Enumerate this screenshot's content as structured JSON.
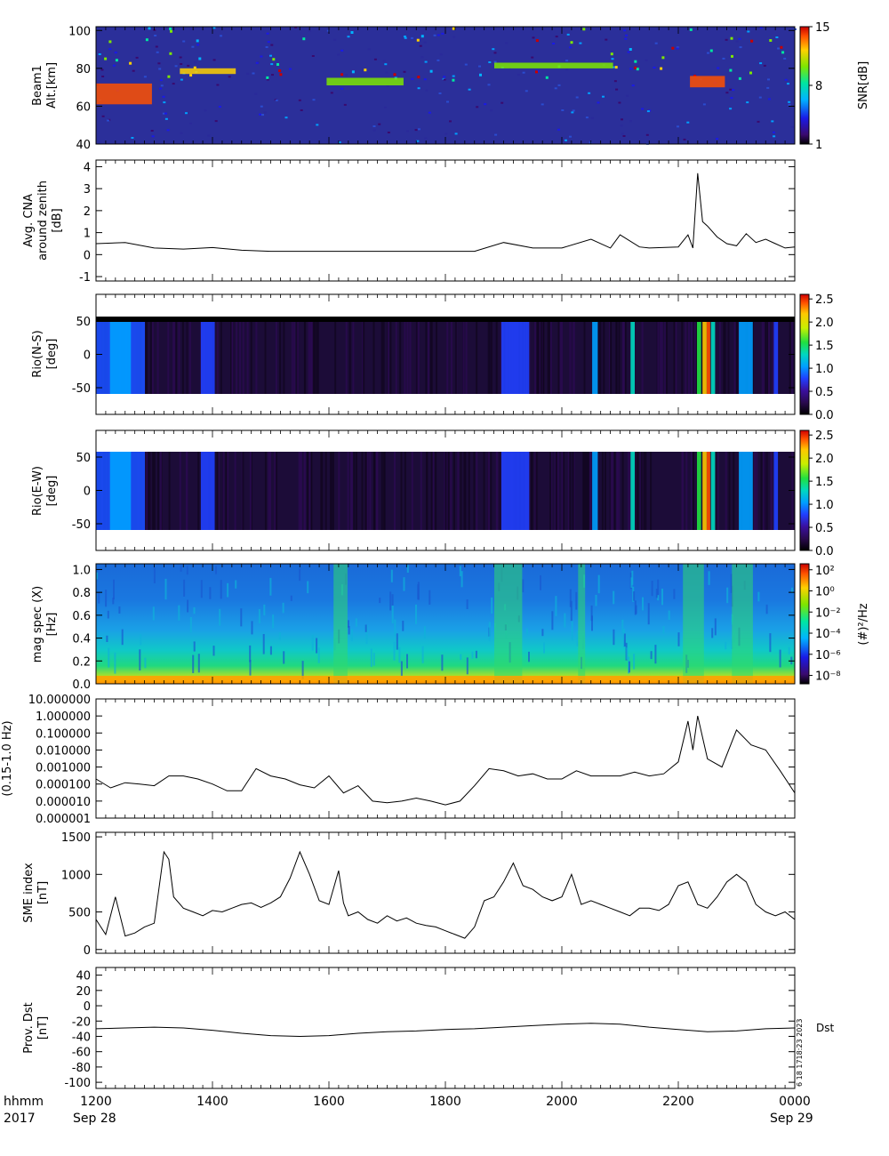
{
  "chart_data": [
    {
      "type": "heatmap",
      "ylabel": [
        "Beam1",
        "Alt.[km]"
      ],
      "ylim": [
        40,
        102
      ],
      "yticks": [
        "40",
        "60",
        "80",
        "100"
      ],
      "colorbar": {
        "label": "SNR[dB]",
        "range": [
          1,
          15
        ],
        "ticks": [
          "1",
          "8",
          "15"
        ],
        "colormap": "rainbow"
      },
      "features": [
        {
          "t0": 0.0,
          "t1": 0.08,
          "alt0": 61,
          "alt1": 72,
          "value": 12
        },
        {
          "t0": 0.12,
          "t1": 0.2,
          "alt0": 77,
          "alt1": 80,
          "value": 11
        },
        {
          "t0": 0.33,
          "t1": 0.44,
          "alt0": 71,
          "alt1": 75,
          "value": 9
        },
        {
          "t0": 0.57,
          "t1": 0.74,
          "alt0": 80,
          "alt1": 83,
          "value": 8
        },
        {
          "t0": 0.85,
          "t1": 0.9,
          "alt0": 70,
          "alt1": 76,
          "value": 13
        }
      ]
    },
    {
      "type": "line",
      "ylabel": [
        "Avg. CNA",
        "around zenith",
        "[dB]"
      ],
      "ylim": [
        -1.2,
        4.3
      ],
      "yticks": [
        "-1",
        "0",
        "1",
        "2",
        "3",
        "4"
      ],
      "x": [
        1200,
        1230,
        1300,
        1330,
        1400,
        1430,
        1500,
        1530,
        1600,
        1630,
        1700,
        1730,
        1800,
        1830,
        1900,
        1930,
        2000,
        2030,
        2050,
        2100,
        2120,
        2130,
        2200,
        2210,
        2215,
        2220,
        2225,
        2230,
        2240,
        2250,
        2300,
        2310,
        2320,
        2330,
        2340,
        2350,
        2400
      ],
      "values": [
        0.5,
        0.55,
        0.3,
        0.25,
        0.32,
        0.2,
        0.15,
        0.15,
        0.15,
        0.15,
        0.15,
        0.15,
        0.15,
        0.15,
        0.55,
        0.3,
        0.3,
        0.7,
        0.3,
        0.9,
        0.35,
        0.3,
        0.35,
        0.9,
        0.3,
        3.7,
        1.5,
        1.3,
        0.8,
        0.5,
        0.4,
        0.95,
        0.55,
        0.7,
        0.5,
        0.3,
        0.35
      ]
    },
    {
      "type": "heatmap",
      "ylabel": [
        "Rio(N-S)",
        "[deg]"
      ],
      "ylim": [
        -90,
        90
      ],
      "yticks": [
        "-50",
        "0",
        "50"
      ],
      "colorbar": {
        "range": [
          0,
          2.6
        ],
        "ticks": [
          "0.0",
          "0.5",
          "1.0",
          "1.5",
          "2.0",
          "2.5"
        ],
        "colormap": "absorption"
      }
    },
    {
      "type": "heatmap",
      "ylabel": [
        "Rio(E-W)",
        "[deg]"
      ],
      "ylim": [
        -90,
        90
      ],
      "yticks": [
        "-50",
        "0",
        "50"
      ],
      "colorbar": {
        "range": [
          0,
          2.6
        ],
        "ticks": [
          "0.0",
          "0.5",
          "1.0",
          "1.5",
          "2.0",
          "2.5"
        ],
        "colormap": "absorption"
      }
    },
    {
      "type": "heatmap",
      "ylabel": [
        "mag spec (X)",
        "[Hz]"
      ],
      "ylim": [
        0,
        1.05
      ],
      "yticks": [
        "0.0",
        "0.2",
        "0.4",
        "0.6",
        "0.8",
        "1.0"
      ],
      "colorbar": {
        "label": "(#)²/Hz",
        "ticks": [
          "10⁻⁸",
          "10⁻⁶",
          "10⁻⁴",
          "10⁻²",
          "10⁰",
          "10²"
        ],
        "colormap": "rainbow",
        "scale": "log"
      }
    },
    {
      "type": "line",
      "ylabel": [
        "(0.15-1.0 Hz)"
      ],
      "yscale": "log",
      "ylim": [
        1e-06,
        10
      ],
      "yticks": [
        "0.000001",
        "0.000010",
        "0.000100",
        "0.001000",
        "0.010000",
        "0.100000",
        "1.000000",
        "10.000000"
      ],
      "x": [
        1200,
        1215,
        1230,
        1245,
        1300,
        1315,
        1330,
        1345,
        1400,
        1415,
        1430,
        1445,
        1500,
        1515,
        1530,
        1545,
        1600,
        1615,
        1630,
        1645,
        1700,
        1715,
        1730,
        1745,
        1800,
        1815,
        1830,
        1845,
        1900,
        1915,
        1930,
        1945,
        2000,
        2015,
        2030,
        2045,
        2100,
        2115,
        2130,
        2145,
        2200,
        2210,
        2215,
        2220,
        2230,
        2245,
        2300,
        2315,
        2330,
        2345,
        2400
      ],
      "values": [
        0.0002,
        6e-05,
        0.00012,
        0.0001,
        8e-05,
        0.0003,
        0.0003,
        0.0002,
        0.0001,
        4e-05,
        4e-05,
        0.0008,
        0.0003,
        0.0002,
        9e-05,
        6e-05,
        0.0003,
        3e-05,
        8e-05,
        1e-05,
        8e-06,
        1e-05,
        1.5e-05,
        1e-05,
        6e-06,
        1e-05,
        8e-05,
        0.0008,
        0.0006,
        0.0003,
        0.0004,
        0.0002,
        0.0002,
        0.0006,
        0.0003,
        0.0003,
        0.0003,
        0.0005,
        0.0003,
        0.0004,
        0.002,
        0.5,
        0.01,
        1.0,
        0.003,
        0.001,
        0.15,
        0.02,
        0.01,
        0.0006,
        3e-05
      ]
    },
    {
      "type": "line",
      "ylabel": [
        "SME index",
        "[nT]"
      ],
      "ylim": [
        -50,
        1560
      ],
      "yticks": [
        "0",
        "500",
        "1000",
        "1500"
      ],
      "x": [
        1200,
        1210,
        1220,
        1230,
        1240,
        1250,
        1300,
        1310,
        1315,
        1320,
        1330,
        1340,
        1350,
        1400,
        1410,
        1420,
        1430,
        1440,
        1450,
        1500,
        1510,
        1520,
        1530,
        1540,
        1550,
        1600,
        1610,
        1615,
        1620,
        1630,
        1640,
        1650,
        1700,
        1710,
        1720,
        1730,
        1740,
        1750,
        1800,
        1810,
        1820,
        1830,
        1840,
        1850,
        1900,
        1910,
        1920,
        1930,
        1940,
        1950,
        2000,
        2010,
        2020,
        2030,
        2040,
        2050,
        2100,
        2110,
        2120,
        2130,
        2140,
        2150,
        2200,
        2210,
        2220,
        2230,
        2240,
        2250,
        2300,
        2310,
        2320,
        2330,
        2340,
        2350,
        2400
      ],
      "values": [
        400,
        200,
        700,
        180,
        220,
        300,
        350,
        1300,
        1200,
        700,
        550,
        500,
        450,
        520,
        500,
        550,
        600,
        620,
        560,
        620,
        700,
        950,
        1300,
        1000,
        650,
        600,
        1050,
        620,
        450,
        500,
        400,
        350,
        450,
        380,
        420,
        350,
        320,
        300,
        250,
        200,
        150,
        300,
        650,
        700,
        900,
        1150,
        850,
        800,
        700,
        650,
        700,
        1000,
        600,
        650,
        600,
        550,
        500,
        450,
        550,
        550,
        520,
        600,
        850,
        900,
        600,
        550,
        700,
        900,
        1000,
        900,
        600,
        500,
        450,
        500,
        400
      ]
    },
    {
      "type": "line",
      "ylabel": [
        "Prov. Dst",
        "[nT]"
      ],
      "ylim": [
        -108,
        50
      ],
      "yticks": [
        "-100",
        "-80",
        "-60",
        "-40",
        "-20",
        "0",
        "20",
        "40"
      ],
      "series_label": "Dst",
      "x": [
        1200,
        1230,
        1300,
        1330,
        1400,
        1430,
        1500,
        1530,
        1600,
        1630,
        1700,
        1730,
        1800,
        1830,
        1900,
        1930,
        2000,
        2030,
        2100,
        2130,
        2200,
        2230,
        2300,
        2330,
        2400
      ],
      "values": [
        -30,
        -29,
        -28,
        -29,
        -32,
        -36,
        -39,
        -40,
        -39,
        -36,
        -34,
        -33,
        -31,
        -30,
        -28,
        -26,
        -24,
        -23,
        -24,
        -28,
        -31,
        -34,
        -33,
        -30,
        -29
      ]
    }
  ],
  "x_axis": {
    "label": [
      "hhmm",
      "2017"
    ],
    "ticks": [
      "1200",
      "1400",
      "1600",
      "1800",
      "2000",
      "2200",
      "0000"
    ],
    "dates": [
      "Sep 28",
      "Sep 29"
    ]
  },
  "stamp": "6 18 1718:23 2023"
}
